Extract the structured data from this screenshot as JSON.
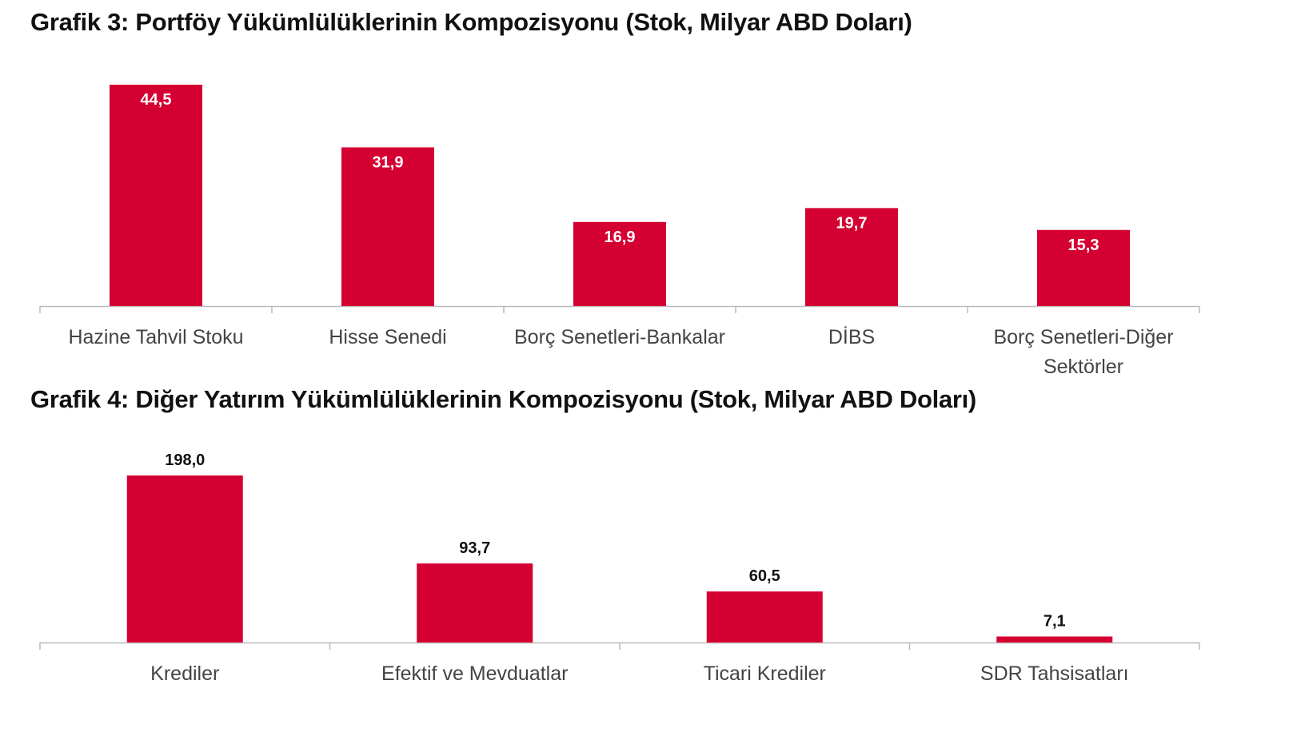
{
  "chart_data": [
    {
      "type": "bar",
      "title": "Grafik 3: Portföy Yükümlülüklerinin Kompozisyonu (Stok, Milyar ABD Doları)",
      "categories": [
        [
          "Hazine Tahvil Stoku"
        ],
        [
          "Hisse Senedi"
        ],
        [
          "Borç Senetleri-Bankalar"
        ],
        [
          "DİBS"
        ],
        [
          "Borç Senetleri-Diğer",
          "Sektörler"
        ]
      ],
      "values": [
        44.5,
        31.9,
        16.9,
        19.7,
        15.3
      ],
      "data_labels": [
        "44,5",
        "31,9",
        "16,9",
        "19,7",
        "15,3"
      ],
      "label_position": "inside-top",
      "ylim": [
        0,
        44.5
      ],
      "grid": false,
      "color": "#D50032"
    },
    {
      "type": "bar",
      "title": "Grafik 4: Diğer Yatırım Yükümlülüklerinin Kompozisyonu (Stok, Milyar ABD Doları)",
      "categories": [
        [
          "Krediler"
        ],
        [
          "Efektif ve Mevduatlar"
        ],
        [
          "Ticari Krediler"
        ],
        [
          "SDR Tahsisatları"
        ]
      ],
      "values": [
        198.0,
        93.7,
        60.5,
        7.1
      ],
      "data_labels": [
        "198,0",
        "93,7",
        "60,5",
        "7,1"
      ],
      "label_position": "outside-top",
      "ylim": [
        0,
        198
      ],
      "grid": false,
      "color": "#D50032"
    }
  ]
}
